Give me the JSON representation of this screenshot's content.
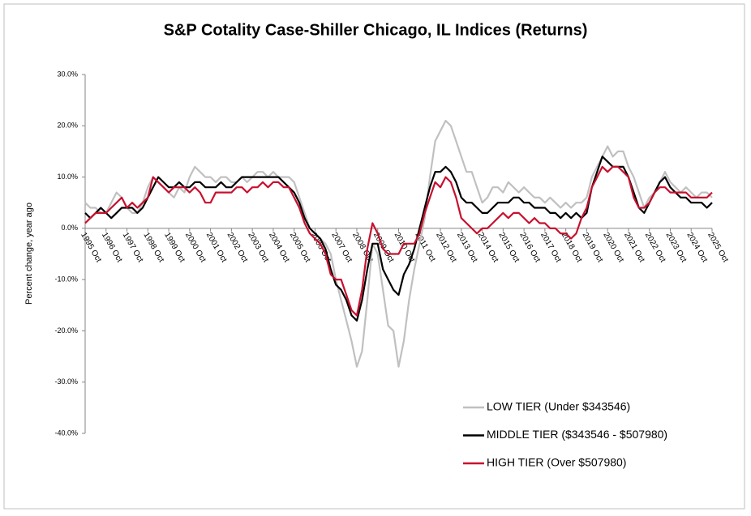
{
  "chart_data": {
    "type": "line",
    "title": "S&P Cotality Case-Shiller Chicago, IL Indices (Returns)",
    "y_label": "Percent change, year ago",
    "categories": [
      "1995 Oct",
      null,
      null,
      null,
      "1996 Oct",
      null,
      null,
      null,
      "1997 Oct",
      null,
      null,
      null,
      "1998 Oct",
      null,
      null,
      null,
      "1999 Oct",
      null,
      null,
      null,
      "2000 Oct",
      null,
      null,
      null,
      "2001 Oct",
      null,
      null,
      null,
      "2002 Oct",
      null,
      null,
      null,
      "2003 Oct",
      null,
      null,
      null,
      "2004 Oct",
      null,
      null,
      null,
      "2005 Oct",
      null,
      null,
      null,
      "2006 Oct",
      null,
      null,
      null,
      "2007 Oct",
      null,
      null,
      null,
      "2008 Oct",
      null,
      null,
      null,
      "2009 Oct",
      null,
      null,
      null,
      "2010 Oct",
      null,
      null,
      null,
      "2011 Oct",
      null,
      null,
      null,
      "2012 Oct",
      null,
      null,
      null,
      "2013 Oct",
      null,
      null,
      null,
      "2014 Oct",
      null,
      null,
      null,
      "2015 Oct",
      null,
      null,
      null,
      "2016 Oct",
      null,
      null,
      null,
      "2017 Oct",
      null,
      null,
      null,
      "2018 Oct",
      null,
      null,
      null,
      "2019 Oct",
      null,
      null,
      null,
      "2020 Oct",
      null,
      null,
      null,
      "2021 Oct",
      null,
      null,
      null,
      "2022 Oct",
      null,
      null,
      null,
      "2023 Oct",
      null,
      null,
      null,
      "2024 Oct",
      null,
      null,
      null,
      "2025 Oct"
    ],
    "series": [
      {
        "name": "LOW TIER (Under $343546)",
        "color": "#c0c0c0",
        "values": [
          5,
          4,
          4,
          3,
          3,
          5,
          7,
          6,
          4,
          3,
          3,
          5,
          8,
          10,
          9,
          8,
          7,
          6,
          8,
          7,
          10,
          12,
          11,
          10,
          10,
          9,
          10,
          10,
          9,
          9,
          10,
          9,
          10,
          11,
          11,
          10,
          11,
          10,
          10,
          10,
          9,
          6,
          3,
          0,
          -1,
          -2,
          -3,
          -5,
          -10,
          -14,
          -18,
          -22,
          -27,
          -24,
          -14,
          -3,
          -5,
          -12,
          -19,
          -20,
          -27,
          -22,
          -14,
          -8,
          -3,
          2,
          10,
          17,
          19,
          21,
          20,
          17,
          14,
          11,
          11,
          8,
          5,
          6,
          8,
          8,
          7,
          9,
          8,
          7,
          8,
          7,
          6,
          6,
          5,
          6,
          5,
          4,
          5,
          4,
          5,
          5,
          6,
          10,
          12,
          14,
          16,
          14,
          15,
          15,
          12,
          10,
          7,
          4,
          6,
          7,
          9,
          11,
          9,
          8,
          7,
          8,
          7,
          6,
          7,
          7,
          6
        ]
      },
      {
        "name": "MIDDLE TIER ($343546 - $507980)",
        "color": "#000000",
        "values": [
          3,
          2,
          3,
          4,
          3,
          2,
          3,
          4,
          4,
          4,
          3,
          4,
          6,
          8,
          10,
          9,
          8,
          8,
          9,
          8,
          8,
          9,
          9,
          8,
          8,
          8,
          9,
          8,
          8,
          9,
          10,
          10,
          10,
          10,
          10,
          10,
          10,
          10,
          9,
          8,
          7,
          5,
          2,
          0,
          -1,
          -2,
          -4,
          -8,
          -11,
          -12,
          -14,
          -17,
          -18,
          -14,
          -8,
          -3,
          -3,
          -8,
          -10,
          -12,
          -13,
          -9,
          -7,
          -4,
          0,
          4,
          8,
          11,
          11,
          12,
          11,
          9,
          6,
          5,
          5,
          4,
          3,
          3,
          4,
          5,
          5,
          5,
          6,
          6,
          5,
          5,
          4,
          4,
          4,
          3,
          3,
          2,
          3,
          2,
          3,
          2,
          3,
          8,
          11,
          14,
          13,
          12,
          12,
          12,
          10,
          7,
          4,
          3,
          5,
          7,
          9,
          10,
          8,
          7,
          6,
          6,
          5,
          5,
          5,
          4,
          5
        ]
      },
      {
        "name": "HIGH TIER (Over $507980)",
        "color": "#c8102e",
        "values": [
          1,
          2,
          3,
          3,
          3,
          4,
          5,
          6,
          4,
          5,
          4,
          5,
          6,
          10,
          9,
          8,
          7,
          8,
          8,
          8,
          7,
          8,
          7,
          5,
          5,
          7,
          7,
          7,
          7,
          8,
          8,
          7,
          8,
          8,
          9,
          8,
          9,
          9,
          8,
          8,
          6,
          4,
          1,
          -1,
          -2,
          -3,
          -5,
          -9,
          -10,
          -10,
          -13,
          -16,
          -17,
          -12,
          -4,
          1,
          -1,
          -4,
          -5,
          -5,
          -5,
          -3,
          -3,
          -3,
          -1,
          3,
          6,
          9,
          8,
          10,
          9,
          6,
          2,
          1,
          0,
          -1,
          0,
          0,
          1,
          2,
          3,
          2,
          3,
          3,
          2,
          1,
          2,
          1,
          1,
          0,
          0,
          -1,
          -1,
          -2,
          -1,
          2,
          4,
          8,
          10,
          12,
          11,
          12,
          12,
          11,
          10,
          6,
          4,
          4,
          5,
          7,
          8,
          8,
          7,
          7,
          7,
          7,
          6,
          6,
          6,
          6,
          7
        ]
      }
    ],
    "ylim": [
      -40,
      30
    ],
    "yticks": [
      {
        "value": -40,
        "label": "-40.0%"
      },
      {
        "value": -30,
        "label": "-30.0%"
      },
      {
        "value": -20,
        "label": "-20.0%"
      },
      {
        "value": -10,
        "label": "-10.0%"
      },
      {
        "value": 0,
        "label": "0.0%"
      },
      {
        "value": 10,
        "label": "10.0%"
      },
      {
        "value": 20,
        "label": "20.0%"
      },
      {
        "value": 30,
        "label": "30.0%"
      }
    ]
  }
}
